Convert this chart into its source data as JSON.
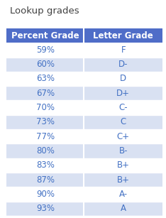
{
  "title": "Lookup grades",
  "headers": [
    "Percent Grade",
    "Letter Grade"
  ],
  "rows": [
    [
      "59%",
      "F"
    ],
    [
      "60%",
      "D-"
    ],
    [
      "63%",
      "D"
    ],
    [
      "67%",
      "D+"
    ],
    [
      "70%",
      "C-"
    ],
    [
      "73%",
      "C"
    ],
    [
      "77%",
      "C+"
    ],
    [
      "80%",
      "B-"
    ],
    [
      "83%",
      "B+"
    ],
    [
      "87%",
      "B+"
    ],
    [
      "90%",
      "A-"
    ],
    [
      "93%",
      "A"
    ]
  ],
  "header_bg": "#4F6DC8",
  "header_text_color": "#FFFFFF",
  "row_alt_bg": "#D9E1F2",
  "row_plain_bg": "#FFFFFF",
  "row_text_color": "#4472C4",
  "title_color": "#404040",
  "title_fontsize": 9.5,
  "cell_fontsize": 8.5,
  "header_fontsize": 8.5,
  "border_color": "#FFFFFF",
  "background_color": "#FFFFFF",
  "fig_width": 2.34,
  "fig_height": 3.07,
  "dpi": 100
}
